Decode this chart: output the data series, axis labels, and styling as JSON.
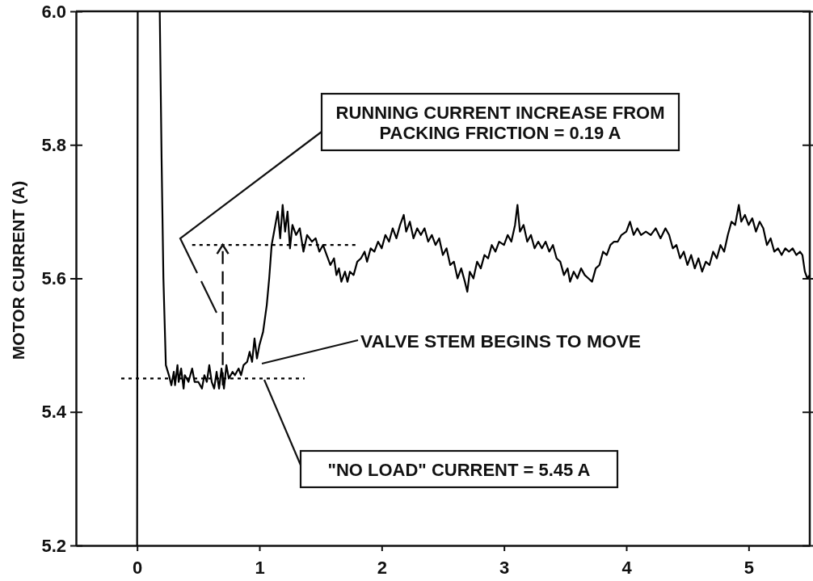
{
  "chart_data": {
    "type": "line",
    "ylabel": "MOTOR CURRENT (A)",
    "xlim": [
      -0.5,
      5.5
    ],
    "xticks": [
      0,
      1,
      2,
      3,
      4,
      5
    ],
    "ylim": [
      5.2,
      6.0
    ],
    "yticks": [
      5.2,
      5.4,
      5.6,
      5.8,
      {
        "value": 6.0,
        "label": "6.0"
      }
    ],
    "series": [
      {
        "color": "#000000",
        "x": [
          0,
          0.005,
          0.1,
          0.185,
          0.2,
          0.215,
          0.235,
          0.26,
          0.28,
          0.3,
          0.31,
          0.33,
          0.34,
          0.36,
          0.38,
          0.39,
          0.42,
          0.45,
          0.47,
          0.5,
          0.53,
          0.55,
          0.57,
          0.59,
          0.61,
          0.63,
          0.65,
          0.67,
          0.69,
          0.71,
          0.73,
          0.75,
          0.78,
          0.8,
          0.83,
          0.85,
          0.87,
          0.9,
          0.92,
          0.94,
          0.96,
          0.98,
          1.0,
          1.03,
          1.06,
          1.08,
          1.1,
          1.13,
          1.15,
          1.17,
          1.19,
          1.21,
          1.23,
          1.25,
          1.27,
          1.3,
          1.33,
          1.36,
          1.39,
          1.43,
          1.46,
          1.49,
          1.52,
          1.55,
          1.58,
          1.61,
          1.63,
          1.65,
          1.67,
          1.7,
          1.72,
          1.74,
          1.77,
          1.8,
          1.83,
          1.86,
          1.88,
          1.91,
          1.94,
          1.97,
          2.0,
          2.03,
          2.06,
          2.09,
          2.12,
          2.15,
          2.18,
          2.2,
          2.23,
          2.26,
          2.29,
          2.32,
          2.35,
          2.38,
          2.41,
          2.44,
          2.47,
          2.5,
          2.53,
          2.56,
          2.59,
          2.62,
          2.65,
          2.68,
          2.7,
          2.72,
          2.75,
          2.78,
          2.81,
          2.84,
          2.87,
          2.9,
          2.93,
          2.96,
          3.0,
          3.03,
          3.06,
          3.09,
          3.11,
          3.13,
          3.16,
          3.19,
          3.22,
          3.25,
          3.28,
          3.31,
          3.34,
          3.37,
          3.4,
          3.43,
          3.46,
          3.49,
          3.52,
          3.54,
          3.57,
          3.6,
          3.63,
          3.66,
          3.69,
          3.72,
          3.75,
          3.78,
          3.81,
          3.84,
          3.87,
          3.9,
          3.93,
          3.96,
          4.0,
          4.03,
          4.06,
          4.09,
          4.12,
          4.16,
          4.2,
          4.24,
          4.28,
          4.32,
          4.35,
          4.38,
          4.41,
          4.44,
          4.47,
          4.5,
          4.53,
          4.56,
          4.59,
          4.62,
          4.65,
          4.68,
          4.71,
          4.74,
          4.77,
          4.8,
          4.83,
          4.86,
          4.89,
          4.92,
          4.94,
          4.97,
          5.0,
          5.03,
          5.06,
          5.09,
          5.12,
          5.15,
          5.18,
          5.21,
          5.24,
          5.27,
          5.3,
          5.33,
          5.36,
          5.39,
          5.42,
          5.44,
          5.46,
          5.48,
          5.5
        ],
        "values": [
          5.2,
          6.0,
          null,
          6.0,
          5.78,
          5.6,
          5.47,
          5.455,
          5.44,
          5.46,
          5.44,
          5.47,
          5.445,
          5.465,
          5.435,
          5.455,
          5.445,
          5.465,
          5.445,
          5.445,
          5.435,
          5.455,
          5.445,
          5.47,
          5.445,
          5.435,
          5.46,
          5.435,
          5.465,
          5.435,
          5.47,
          5.45,
          5.46,
          5.455,
          5.465,
          5.455,
          5.47,
          5.475,
          5.49,
          5.475,
          5.51,
          5.48,
          5.5,
          5.52,
          5.56,
          5.6,
          5.65,
          5.68,
          5.7,
          5.66,
          5.71,
          5.67,
          5.7,
          5.645,
          5.68,
          5.665,
          5.675,
          5.64,
          5.665,
          5.655,
          5.66,
          5.64,
          5.65,
          5.635,
          5.62,
          5.63,
          5.605,
          5.615,
          5.595,
          5.61,
          5.595,
          5.61,
          5.605,
          5.625,
          5.63,
          5.64,
          5.625,
          5.645,
          5.64,
          5.655,
          5.645,
          5.665,
          5.655,
          5.675,
          5.66,
          5.68,
          5.695,
          5.67,
          5.685,
          5.66,
          5.675,
          5.665,
          5.675,
          5.655,
          5.665,
          5.65,
          5.66,
          5.635,
          5.645,
          5.62,
          5.625,
          5.6,
          5.615,
          5.595,
          5.58,
          5.61,
          5.6,
          5.625,
          5.615,
          5.635,
          5.63,
          5.65,
          5.64,
          5.655,
          5.65,
          5.665,
          5.655,
          5.68,
          5.71,
          5.67,
          5.68,
          5.655,
          5.665,
          5.645,
          5.655,
          5.645,
          5.655,
          5.64,
          5.65,
          5.63,
          5.625,
          5.605,
          5.615,
          5.595,
          5.61,
          5.6,
          5.615,
          5.605,
          5.6,
          5.595,
          5.615,
          5.62,
          5.64,
          5.635,
          5.65,
          5.655,
          5.655,
          5.665,
          5.67,
          5.685,
          5.665,
          5.675,
          5.665,
          5.67,
          5.665,
          5.675,
          5.66,
          5.675,
          5.665,
          5.645,
          5.65,
          5.63,
          5.64,
          5.62,
          5.635,
          5.615,
          5.63,
          5.61,
          5.625,
          5.62,
          5.64,
          5.63,
          5.65,
          5.64,
          5.665,
          5.685,
          5.68,
          5.71,
          5.685,
          5.695,
          5.68,
          5.69,
          5.67,
          5.685,
          5.675,
          5.65,
          5.66,
          5.64,
          5.645,
          5.635,
          5.645,
          5.64,
          5.645,
          5.635,
          5.64,
          5.635,
          5.61,
          5.6,
          5.605
        ]
      },
      {
        "color": "#000000",
        "x": [
          0.45,
          1.8
        ],
        "values": [
          5.65,
          5.65
        ],
        "line_style": "dotted"
      },
      {
        "color": "#000000",
        "x": [
          -0.13,
          1.37
        ],
        "values": [
          5.45,
          5.45
        ],
        "line_style": "dotted"
      },
      {
        "color": "#000000",
        "x": [
          0.7,
          0.7
        ],
        "values": [
          5.44,
          5.65
        ],
        "line_style": "dashed"
      }
    ],
    "annotations": [
      "RUNNING CURRENT INCREASE FROM PACKING FRICTION = 0.19 A",
      "VALVE STEM BEGINS TO MOVE",
      "\"NO LOAD\" CURRENT = 5.45 A"
    ]
  }
}
